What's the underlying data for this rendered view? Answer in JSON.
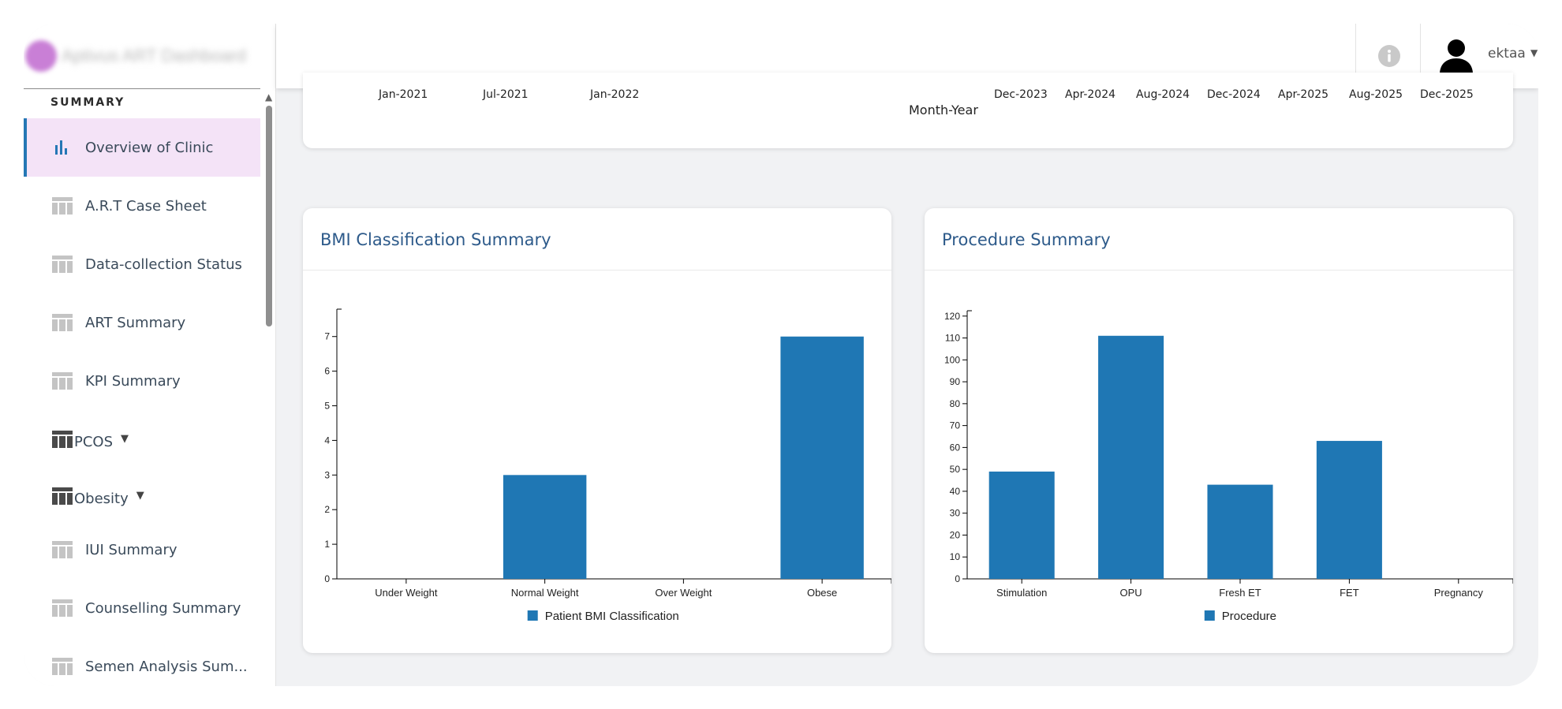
{
  "brand": {
    "name": "Aptivus ART Dashboard"
  },
  "sidebar": {
    "section": "SUMMARY",
    "items": [
      {
        "label": "Overview of Clinic",
        "icon": "bar-chart-icon",
        "active": true
      },
      {
        "label": "A.R.T Case Sheet",
        "icon": "table-icon"
      },
      {
        "label": "Data-collection Status",
        "icon": "table-icon"
      },
      {
        "label": "ART Summary",
        "icon": "table-icon"
      },
      {
        "label": "KPI Summary",
        "icon": "table-icon"
      }
    ],
    "groups": [
      {
        "label": "PCOS",
        "icon": "table-icon"
      },
      {
        "label": "Obesity",
        "icon": "table-icon"
      }
    ],
    "items2": [
      {
        "label": "IUI Summary",
        "icon": "table-icon"
      },
      {
        "label": "Counselling Summary",
        "icon": "table-icon"
      },
      {
        "label": "Semen Analysis Sum...",
        "icon": "table-icon"
      }
    ]
  },
  "header": {
    "user": "ektaa"
  },
  "timeline": {
    "ticks": [
      "Jan-2021",
      "Jul-2021",
      "Jan-2022",
      "Dec-2023",
      "Apr-2024",
      "Aug-2024",
      "Dec-2024",
      "Apr-2025",
      "Aug-2025",
      "Dec-2025"
    ],
    "xlabel": "Month-Year"
  },
  "chart_data": [
    {
      "type": "bar",
      "title": "BMI Classification Summary",
      "categories": [
        "Under Weight",
        "Normal Weight",
        "Over Weight",
        "Obese"
      ],
      "values": [
        0,
        3,
        0,
        7
      ],
      "legend": "Patient BMI Classification",
      "ylim": [
        0,
        7.7
      ],
      "yticks": [
        0,
        1,
        2,
        3,
        4,
        5,
        6,
        7
      ],
      "color": "#1f77b4"
    },
    {
      "type": "bar",
      "title": "Procedure Summary",
      "categories": [
        "Stimulation",
        "OPU",
        "Fresh ET",
        "FET",
        "Pregnancy"
      ],
      "values": [
        49,
        111,
        43,
        63,
        0
      ],
      "legend": "Procedure",
      "ylim": [
        0,
        121
      ],
      "yticks": [
        0,
        10,
        20,
        30,
        40,
        50,
        60,
        70,
        80,
        90,
        100,
        110,
        120
      ],
      "color": "#1f77b4"
    }
  ]
}
